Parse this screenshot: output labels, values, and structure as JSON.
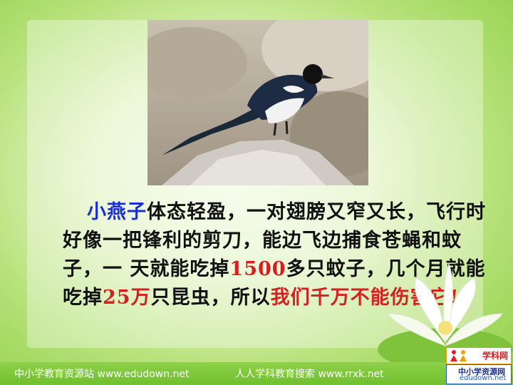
{
  "passage": {
    "highlight_name": "小燕子",
    "part1": "体态轻盈，一对翅膀又窄又长，飞行时好像一把锋利的剪刀，能边飞边捕食苍蝇和蚊子，一 天就能吃掉",
    "num1": "1500",
    "part2": "多只蚊子，几个月就能吃掉",
    "num2": "25万",
    "part3": "只昆虫，所以",
    "red_start": "我们千万不能伤害它!"
  },
  "footer": {
    "left": "中小学教育资源站 www.edudown.net",
    "right": "人人学科教育搜索  www.rrxk.net"
  },
  "logos": {
    "top_text": "学科网",
    "bottom_text1": "中小学资源网",
    "bottom_text2": "edudown.net"
  },
  "colors": {
    "highlight_blue": "#1a2fd0",
    "highlight_red": "#d42020",
    "bg_green": "#8fcf46"
  }
}
